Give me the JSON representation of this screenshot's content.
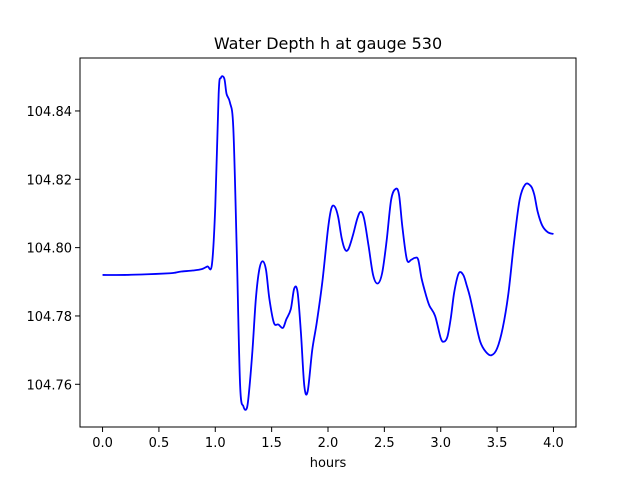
{
  "chart_data": {
    "type": "line",
    "title": "Water Depth h at gauge 530",
    "xlabel": "hours",
    "ylabel": "",
    "xlim": [
      -0.2,
      4.2
    ],
    "ylim": [
      104.7475,
      104.8555
    ],
    "xticks": [
      0.0,
      0.5,
      1.0,
      1.5,
      2.0,
      2.5,
      3.0,
      3.5,
      4.0
    ],
    "xtick_labels": [
      "0.0",
      "0.5",
      "1.0",
      "1.5",
      "2.0",
      "2.5",
      "3.0",
      "3.5",
      "4.0"
    ],
    "yticks": [
      104.76,
      104.78,
      104.8,
      104.82,
      104.84
    ],
    "ytick_labels": [
      "104.76",
      "104.78",
      "104.80",
      "104.82",
      "104.84"
    ],
    "grid": false,
    "series": [
      {
        "color": "#0000ff",
        "x": [
          0.0,
          0.2,
          0.4,
          0.6,
          0.65,
          0.7,
          0.8,
          0.88,
          0.93,
          0.97,
          1.0,
          1.03,
          1.05,
          1.08,
          1.1,
          1.13,
          1.16,
          1.19,
          1.22,
          1.25,
          1.28,
          1.3,
          1.33,
          1.36,
          1.39,
          1.42,
          1.45,
          1.48,
          1.52,
          1.56,
          1.6,
          1.63,
          1.67,
          1.7,
          1.73,
          1.76,
          1.79,
          1.82,
          1.86,
          1.9,
          1.95,
          2.0,
          2.03,
          2.06,
          2.09,
          2.12,
          2.15,
          2.18,
          2.22,
          2.26,
          2.29,
          2.32,
          2.36,
          2.4,
          2.44,
          2.48,
          2.52,
          2.56,
          2.6,
          2.63,
          2.66,
          2.7,
          2.74,
          2.77,
          2.8,
          2.83,
          2.87,
          2.9,
          2.95,
          3.0,
          3.03,
          3.06,
          3.09,
          3.12,
          3.16,
          3.2,
          3.23,
          3.26,
          3.3,
          3.35,
          3.4,
          3.45,
          3.5,
          3.55,
          3.6,
          3.65,
          3.7,
          3.75,
          3.8,
          3.83,
          3.86,
          3.9,
          3.95,
          4.0
        ],
        "y": [
          104.792,
          104.792,
          104.7922,
          104.7925,
          104.7927,
          104.793,
          104.7933,
          104.7937,
          104.7945,
          104.795,
          104.812,
          104.845,
          104.8497,
          104.8495,
          104.845,
          104.8425,
          104.835,
          104.8,
          104.76,
          104.7535,
          104.753,
          104.758,
          104.77,
          104.785,
          104.7935,
          104.796,
          104.7935,
          104.785,
          104.778,
          104.7775,
          104.7765,
          104.779,
          104.782,
          104.788,
          104.787,
          104.775,
          104.7595,
          104.758,
          104.77,
          104.778,
          104.79,
          104.8055,
          104.8115,
          104.812,
          104.809,
          104.803,
          104.7995,
          104.7995,
          104.8035,
          104.8085,
          104.8105,
          104.8085,
          104.8005,
          104.792,
          104.7895,
          104.7925,
          104.802,
          104.814,
          104.8172,
          104.8155,
          104.806,
          104.7965,
          104.7965,
          104.797,
          104.7965,
          104.791,
          104.786,
          104.783,
          104.78,
          104.7735,
          104.7725,
          104.774,
          104.7795,
          104.787,
          104.7925,
          104.792,
          104.789,
          104.7855,
          104.7795,
          104.7725,
          104.7695,
          104.7685,
          104.7705,
          104.7765,
          104.7865,
          104.8015,
          104.814,
          104.8185,
          104.818,
          104.8155,
          104.8105,
          104.8065,
          104.8045,
          104.804
        ]
      }
    ]
  }
}
